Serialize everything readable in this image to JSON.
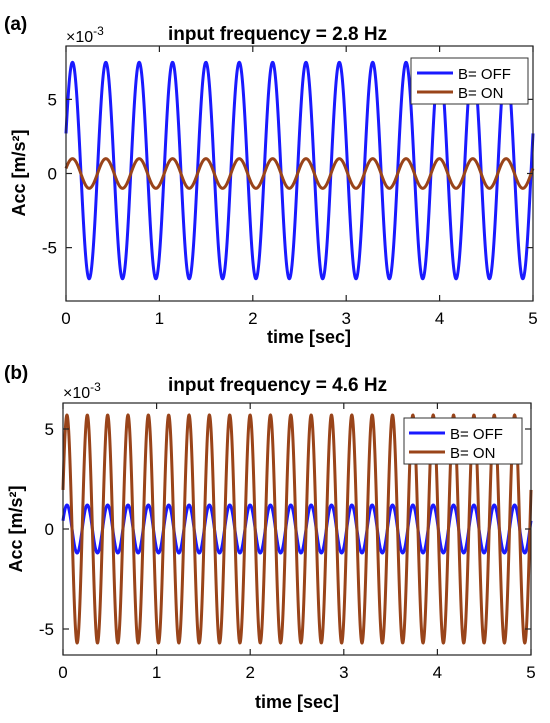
{
  "chart_data": [
    {
      "type": "line",
      "panel_label": "(a)",
      "title": "input frequency = 2.8 Hz",
      "xlabel": "time [sec]",
      "ylabel": "Acc [m/s²]",
      "exponent_label": "×10",
      "exponent_power": "-3",
      "xlim": [
        0,
        5
      ],
      "ylim": [
        -8.6,
        8.6
      ],
      "xticks": [
        "0",
        "1",
        "2",
        "3",
        "4",
        "5"
      ],
      "yticks": [
        "5",
        "0",
        "-5"
      ],
      "ytick_values": [
        5,
        0,
        -5
      ],
      "grid": false,
      "legend_position": "top-right",
      "series": [
        {
          "name": "B= OFF",
          "color": "#1a1aff",
          "frequency_hz": 2.8,
          "amplitude": 7.3,
          "offset": 0.2
        },
        {
          "name": "B= ON",
          "color": "#99441a",
          "frequency_hz": 2.8,
          "amplitude": 1.0,
          "offset": 0.0
        }
      ]
    },
    {
      "type": "line",
      "panel_label": "(b)",
      "title": "input frequency = 4.6 Hz",
      "xlabel": "time [sec]",
      "ylabel": "Acc [m/s²]",
      "exponent_label": "×10",
      "exponent_power": "-3",
      "xlim": [
        0,
        5
      ],
      "ylim": [
        -6.3,
        6.3
      ],
      "xticks": [
        "0",
        "1",
        "2",
        "3",
        "4",
        "5"
      ],
      "yticks": [
        "5",
        "0",
        "-5"
      ],
      "ytick_values": [
        5,
        0,
        -5
      ],
      "grid": false,
      "legend_position": "top-right",
      "series": [
        {
          "name": "B= OFF",
          "color": "#1a1aff",
          "frequency_hz": 4.6,
          "amplitude": 1.2,
          "offset": 0.0
        },
        {
          "name": "B= ON",
          "color": "#99441a",
          "frequency_hz": 4.6,
          "amplitude": 5.7,
          "offset": 0.0
        }
      ]
    }
  ]
}
